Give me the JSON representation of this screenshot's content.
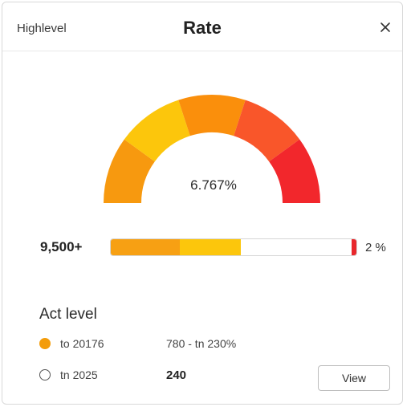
{
  "header": {
    "left_label": "Highlevel",
    "title": "Rate",
    "close_icon": "close-icon"
  },
  "gauge": {
    "value_text": "6.767%",
    "segment_colors": [
      "#f7990f",
      "#fcc60c",
      "#fa8f0c",
      "#f9562a",
      "#f2272c"
    ]
  },
  "progress": {
    "left_label": "9,500+",
    "right_label": "2 %",
    "segments": [
      {
        "color": "#f7a013",
        "fraction": 0.28
      },
      {
        "color": "#fcc60c",
        "fraction": 0.25
      },
      {
        "color": "#ffffff",
        "fraction": 0.45
      },
      {
        "color": "#e8272c",
        "fraction": 0.02
      }
    ]
  },
  "section": {
    "title": "Act level",
    "rows": [
      {
        "selected": true,
        "label": "to 20176",
        "value": "780 - tn 230%"
      },
      {
        "selected": false,
        "label": "tn 2025",
        "value": "240"
      }
    ]
  },
  "actions": {
    "view_label": "View"
  },
  "colors": {
    "accent": "#f39c0a",
    "danger": "#e8272c"
  }
}
